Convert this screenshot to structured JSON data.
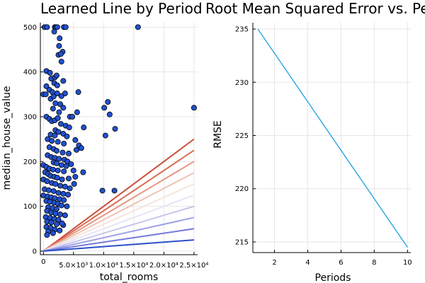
{
  "chart_data": [
    {
      "type": "scatter",
      "title": "Learned Line by Period",
      "xlabel": "total_rooms",
      "ylabel": "median_house_value",
      "xlim": [
        -500,
        25600
      ],
      "ylim": [
        -8,
        510
      ],
      "x_ticks": [
        {
          "value": 0,
          "label": "0"
        },
        {
          "value": 5000,
          "label": "5.0×10³"
        },
        {
          "value": 10000,
          "label": "1.0×10⁴"
        },
        {
          "value": 15000,
          "label": "1.5×10⁴"
        },
        {
          "value": 20000,
          "label": "2.0×10⁴"
        },
        {
          "value": 25000,
          "label": "2.5×10⁴"
        }
      ],
      "y_ticks": [
        0,
        100,
        200,
        300,
        400,
        500
      ],
      "grid": true,
      "point_color": "#2151cf",
      "points": [
        [
          200,
          500
        ],
        [
          600,
          500
        ],
        [
          1900,
          500
        ],
        [
          2100,
          500
        ],
        [
          2300,
          500
        ],
        [
          3400,
          500
        ],
        [
          3700,
          500
        ],
        [
          15700,
          500
        ],
        [
          1800,
          490
        ],
        [
          2700,
          475
        ],
        [
          2600,
          458
        ],
        [
          3200,
          445
        ],
        [
          2500,
          438
        ],
        [
          2900,
          440
        ],
        [
          3000,
          423
        ],
        [
          500,
          402
        ],
        [
          1100,
          398
        ],
        [
          1300,
          385
        ],
        [
          1800,
          375
        ],
        [
          2300,
          370
        ],
        [
          1900,
          388
        ],
        [
          2200,
          392
        ],
        [
          3300,
          380
        ],
        [
          500,
          368
        ],
        [
          1000,
          360
        ],
        [
          1500,
          355
        ],
        [
          2300,
          352
        ],
        [
          3000,
          346
        ],
        [
          3600,
          352
        ],
        [
          1200,
          340
        ],
        [
          1700,
          345
        ],
        [
          0,
          350
        ],
        [
          400,
          350
        ],
        [
          5800,
          355
        ],
        [
          2000,
          330
        ],
        [
          2800,
          328
        ],
        [
          3300,
          320
        ],
        [
          1600,
          318
        ],
        [
          2600,
          310
        ],
        [
          10700,
          333
        ],
        [
          10100,
          320
        ],
        [
          11000,
          305
        ],
        [
          500,
          300
        ],
        [
          1000,
          295
        ],
        [
          1400,
          290
        ],
        [
          1900,
          292
        ],
        [
          2400,
          297
        ],
        [
          4400,
          300
        ],
        [
          4800,
          300
        ],
        [
          5600,
          310
        ],
        [
          2900,
          284
        ],
        [
          3700,
          280
        ],
        [
          4300,
          276
        ],
        [
          6700,
          276
        ],
        [
          2000,
          270
        ],
        [
          2500,
          266
        ],
        [
          3300,
          262
        ],
        [
          11900,
          273
        ],
        [
          25000,
          320
        ],
        [
          1200,
          260
        ],
        [
          1900,
          258
        ],
        [
          3900,
          256
        ],
        [
          10300,
          258
        ],
        [
          700,
          250
        ],
        [
          1400,
          246
        ],
        [
          2400,
          244
        ],
        [
          3400,
          240
        ],
        [
          5300,
          248
        ],
        [
          5900,
          236
        ],
        [
          1000,
          232
        ],
        [
          1700,
          228
        ],
        [
          2200,
          224
        ],
        [
          3200,
          220
        ],
        [
          4200,
          218
        ],
        [
          5500,
          226
        ],
        [
          6300,
          230
        ],
        [
          700,
          214
        ],
        [
          1300,
          210
        ],
        [
          1900,
          208
        ],
        [
          2600,
          206
        ],
        [
          3500,
          204
        ],
        [
          4000,
          200
        ],
        [
          1700,
          198
        ],
        [
          2200,
          196
        ],
        [
          3000,
          192
        ],
        [
          3800,
          190
        ],
        [
          4600,
          194
        ],
        [
          0,
          192
        ],
        [
          500,
          188
        ],
        [
          1000,
          184
        ],
        [
          1600,
          182
        ],
        [
          2400,
          180
        ],
        [
          3400,
          178
        ],
        [
          5000,
          180
        ],
        [
          6600,
          176
        ],
        [
          300,
          176
        ],
        [
          800,
          172
        ],
        [
          1200,
          168
        ],
        [
          1800,
          166
        ],
        [
          2300,
          164
        ],
        [
          3100,
          160
        ],
        [
          4200,
          162
        ],
        [
          5300,
          166
        ],
        [
          0,
          160
        ],
        [
          600,
          156
        ],
        [
          1400,
          152
        ],
        [
          2000,
          150
        ],
        [
          2800,
          146
        ],
        [
          3600,
          144
        ],
        [
          4400,
          140
        ],
        [
          5100,
          150
        ],
        [
          200,
          138
        ],
        [
          900,
          136
        ],
        [
          1700,
          134
        ],
        [
          2500,
          130
        ],
        [
          3300,
          128
        ],
        [
          4100,
          126
        ],
        [
          9800,
          135
        ],
        [
          11800,
          135
        ],
        [
          0,
          124
        ],
        [
          700,
          122
        ],
        [
          1300,
          120
        ],
        [
          1900,
          118
        ],
        [
          2700,
          116
        ],
        [
          3400,
          114
        ],
        [
          500,
          112
        ],
        [
          1100,
          110
        ],
        [
          1800,
          108
        ],
        [
          2400,
          106
        ],
        [
          3000,
          102
        ],
        [
          3900,
          100
        ],
        [
          800,
          98
        ],
        [
          1500,
          96
        ],
        [
          2200,
          94
        ],
        [
          600,
          90
        ],
        [
          1300,
          86
        ],
        [
          2000,
          84
        ],
        [
          2800,
          82
        ],
        [
          3600,
          80
        ],
        [
          400,
          76
        ],
        [
          1100,
          74
        ],
        [
          1800,
          72
        ],
        [
          2500,
          70
        ],
        [
          600,
          66
        ],
        [
          1300,
          64
        ],
        [
          2200,
          60
        ],
        [
          3300,
          58
        ],
        [
          500,
          54
        ],
        [
          1200,
          52
        ],
        [
          1900,
          48
        ],
        [
          800,
          44
        ],
        [
          1600,
          40
        ],
        [
          600,
          36
        ],
        [
          2700,
          46
        ],
        [
          3100,
          62
        ]
      ],
      "lines": [
        {
          "slope": 0.01,
          "color": "#cc4e39"
        },
        {
          "slope": 0.009,
          "color": "#d86c55"
        },
        {
          "slope": 0.008,
          "color": "#e59782"
        },
        {
          "slope": 0.007,
          "color": "#f0c2b5"
        },
        {
          "slope": 0.006,
          "color": "#f6e4de"
        },
        {
          "slope": 0.005,
          "color": "#e6e5f4"
        },
        {
          "slope": 0.004,
          "color": "#c4c5ee"
        },
        {
          "slope": 0.003,
          "color": "#9da0e6"
        },
        {
          "slope": 0.002,
          "color": "#7379dc"
        },
        {
          "slope": 0.001,
          "color": "#2b4fc8"
        }
      ],
      "line_x_max": 25000
    },
    {
      "type": "line",
      "title": "Root Mean Squared Error vs. Periods",
      "xlabel": "Periods",
      "ylabel": "RMSE",
      "xlim": [
        0.7,
        10.2
      ],
      "ylim": [
        214.0,
        235.6
      ],
      "x_ticks": [
        2,
        4,
        6,
        8,
        10
      ],
      "y_ticks": [
        215,
        220,
        225,
        230,
        235
      ],
      "grid": true,
      "line_color": "#1f9fe0",
      "x": [
        1,
        10
      ],
      "y": [
        235.0,
        214.5
      ]
    }
  ]
}
